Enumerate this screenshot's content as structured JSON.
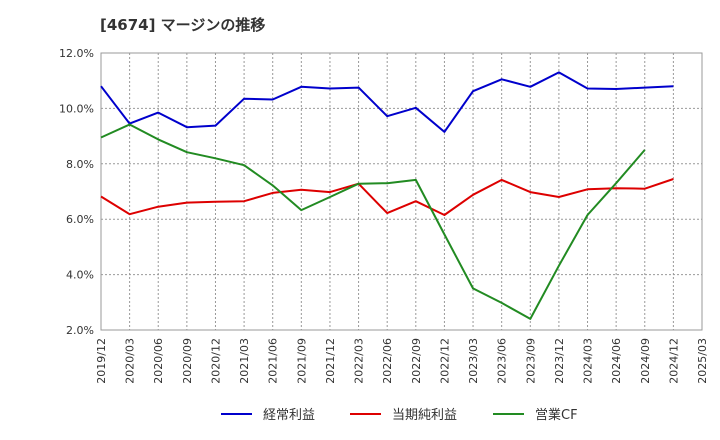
{
  "chart_data": {
    "type": "line",
    "title": "[4674]  マージンの推移",
    "x": [
      "2019/12",
      "2020/03",
      "2020/06",
      "2020/09",
      "2020/12",
      "2021/03",
      "2021/06",
      "2021/09",
      "2021/12",
      "2022/03",
      "2022/06",
      "2022/09",
      "2022/12",
      "2023/03",
      "2023/06",
      "2023/09",
      "2023/12",
      "2024/03",
      "2024/06",
      "2024/09",
      "2024/12",
      "2025/03"
    ],
    "ylim": [
      2.0,
      12.0
    ],
    "yticks": [
      "2.0%",
      "4.0%",
      "6.0%",
      "8.0%",
      "10.0%",
      "12.0%"
    ],
    "ytick_values": [
      2,
      4,
      6,
      8,
      10,
      12
    ],
    "grid": true,
    "legend_position": "bottom",
    "series": [
      {
        "name": "経常利益",
        "color": "#0000cc",
        "values": [
          10.8,
          9.45,
          9.85,
          9.32,
          9.38,
          10.35,
          10.32,
          10.78,
          10.72,
          10.75,
          9.72,
          10.02,
          9.15,
          10.62,
          11.05,
          10.78,
          11.3,
          10.72,
          10.7,
          10.75,
          10.8,
          null
        ]
      },
      {
        "name": "当期純利益",
        "color": "#dd0000",
        "values": [
          6.82,
          6.18,
          6.45,
          6.6,
          6.63,
          6.65,
          6.95,
          7.06,
          6.98,
          7.28,
          6.22,
          6.65,
          6.15,
          6.88,
          7.42,
          6.98,
          6.8,
          7.08,
          7.12,
          7.1,
          7.45,
          null
        ]
      },
      {
        "name": "営業CF",
        "color": "#228b22",
        "values": [
          8.95,
          9.42,
          8.88,
          8.42,
          8.2,
          7.95,
          7.22,
          6.33,
          6.8,
          7.28,
          7.3,
          7.42,
          5.45,
          3.5,
          2.98,
          2.4,
          4.32,
          6.15,
          7.3,
          8.5,
          null,
          null
        ]
      }
    ]
  }
}
